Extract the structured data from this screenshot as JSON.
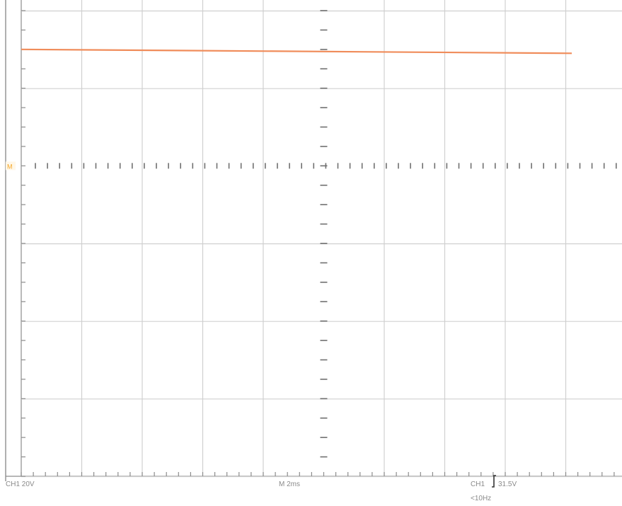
{
  "chart_data": {
    "type": "line",
    "title": "",
    "xlabel": "",
    "ylabel": "",
    "divisions": {
      "x": 10,
      "y": 6
    },
    "grid": true,
    "series": [
      {
        "channel": "CH1",
        "color": "#f08c5a",
        "x": [
          0,
          9.1
        ],
        "y": [
          1.5,
          1.45
        ]
      }
    ],
    "ground_marker": {
      "label": "M",
      "y": 0,
      "color": "#f5a623"
    },
    "trigger_marker": {
      "icon": "rising-edge-trigger-icon"
    },
    "readouts": {
      "channel_scale": "CH1  20V",
      "timebase": "M 2ms",
      "trigger": "CH1",
      "trigger_level": "31.5V",
      "frequency": "<10Hz"
    }
  }
}
